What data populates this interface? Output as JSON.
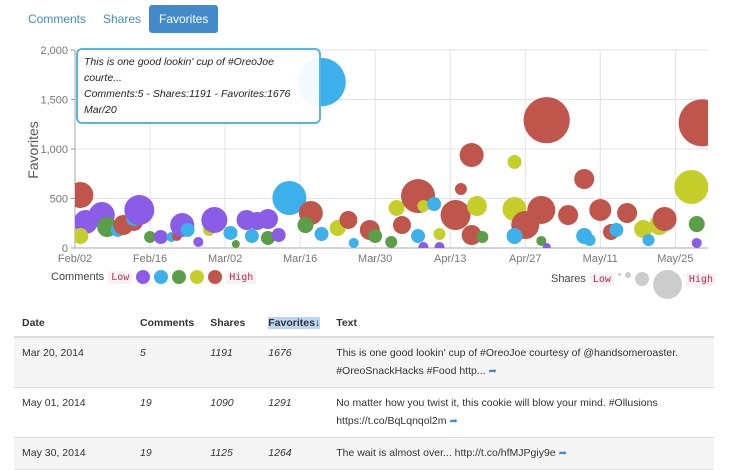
{
  "tabs": [
    {
      "label": "Comments",
      "active": false
    },
    {
      "label": "Shares",
      "active": false
    },
    {
      "label": "Favorites",
      "active": true
    }
  ],
  "tooltip": {
    "line1": "This is one good lookin' cup of #OreoJoe courte...",
    "line2": "Comments:5 - Shares:1191 - Favorites:1676",
    "line3": "Mar/20"
  },
  "chart_data": {
    "type": "scatter",
    "ylabel": "Favorites",
    "ylim": [
      0,
      2000
    ],
    "yticks": [
      "0",
      "500",
      "1,000",
      "1,500",
      "2,000"
    ],
    "xlim": [
      "2014-02-02",
      "2014-06-01"
    ],
    "xticks": [
      "Feb/02",
      "Feb/16",
      "Mar/02",
      "Mar/16",
      "Mar/30",
      "Apr/13",
      "Apr/27",
      "May/11",
      "May/25"
    ],
    "grid": true,
    "color_by": "comments",
    "size_by": "shares",
    "colors": [
      "#8a5ce8",
      "#3cb0ea",
      "#5b9e48",
      "#c6cf2a",
      "#c0554b"
    ],
    "points": [
      [
        "2014-02-03",
        535,
        20,
        345
      ],
      [
        "2014-02-04",
        263,
        2,
        294
      ],
      [
        "2014-02-03",
        121,
        14,
        131
      ],
      [
        "2014-02-07",
        333,
        2,
        345
      ],
      [
        "2014-02-08",
        212,
        9,
        204
      ],
      [
        "2014-02-10",
        182,
        5,
        100
      ],
      [
        "2014-02-11",
        232,
        20,
        204
      ],
      [
        "2014-02-13",
        263,
        20,
        165
      ],
      [
        "2014-02-13",
        303,
        5,
        131
      ],
      [
        "2014-02-14",
        384,
        2,
        459
      ],
      [
        "2014-02-16",
        111,
        9,
        73
      ],
      [
        "2014-02-18",
        111,
        2,
        100
      ],
      [
        "2014-02-20",
        111,
        5,
        51
      ],
      [
        "2014-02-21",
        121,
        20,
        51
      ],
      [
        "2014-02-22",
        232,
        2,
        294
      ],
      [
        "2014-02-23",
        182,
        5,
        100
      ],
      [
        "2014-02-25",
        61,
        2,
        51
      ],
      [
        "2014-02-27",
        182,
        14,
        73
      ],
      [
        "2014-02-28",
        283,
        2,
        345
      ],
      [
        "2014-03-03",
        152,
        5,
        100
      ],
      [
        "2014-03-04",
        40,
        9,
        33
      ],
      [
        "2014-03-06",
        283,
        2,
        204
      ],
      [
        "2014-03-08",
        273,
        2,
        165
      ],
      [
        "2014-03-10",
        293,
        2,
        204
      ],
      [
        "2014-03-07",
        121,
        5,
        100
      ],
      [
        "2014-03-10",
        101,
        9,
        100
      ],
      [
        "2014-03-12",
        131,
        2,
        100
      ],
      [
        "2014-03-14",
        505,
        5,
        590
      ],
      [
        "2014-03-18",
        354,
        20,
        294
      ],
      [
        "2014-03-20",
        141,
        5,
        100
      ],
      [
        "2014-03-17",
        232,
        9,
        131
      ],
      [
        "2014-03-23",
        202,
        14,
        131
      ],
      [
        "2014-03-25",
        283,
        20,
        165
      ],
      [
        "2014-03-26",
        51,
        5,
        51
      ],
      [
        "2014-03-29",
        182,
        20,
        204
      ],
      [
        "2014-03-30",
        121,
        9,
        100
      ],
      [
        "2014-04-03",
        404,
        14,
        131
      ],
      [
        "2014-04-07",
        525,
        20,
        590
      ],
      [
        "2014-04-08",
        424,
        14,
        73
      ],
      [
        "2014-04-10",
        444,
        5,
        100
      ],
      [
        "2014-04-04",
        232,
        20,
        165
      ],
      [
        "2014-04-07",
        121,
        5,
        100
      ],
      [
        "2014-04-02",
        61,
        9,
        73
      ],
      [
        "2014-04-08",
        10,
        2,
        51
      ],
      [
        "2014-04-11",
        10,
        2,
        51
      ],
      [
        "2014-04-15",
        596,
        20,
        73
      ],
      [
        "2014-04-14",
        333,
        20,
        459
      ],
      [
        "2014-04-17",
        131,
        20,
        204
      ],
      [
        "2014-04-18",
        424,
        14,
        204
      ],
      [
        "2014-04-17",
        939,
        20,
        294
      ],
      [
        "2014-04-25",
        394,
        14,
        294
      ],
      [
        "2014-04-25",
        869,
        14,
        100
      ],
      [
        "2014-04-27",
        232,
        20,
        400
      ],
      [
        "2014-04-30",
        384,
        20,
        400
      ],
      [
        "2014-05-05",
        333,
        20,
        204
      ],
      [
        "2014-04-19",
        111,
        9,
        73
      ],
      [
        "2014-04-11",
        141,
        14,
        73
      ],
      [
        "2014-04-25",
        121,
        5,
        131
      ],
      [
        "2014-05-08",
        121,
        5,
        131
      ],
      [
        "2014-05-09",
        81,
        5,
        73
      ],
      [
        "2014-05-08",
        697,
        20,
        204
      ],
      [
        "2014-05-11",
        384,
        20,
        247
      ],
      [
        "2014-05-16",
        354,
        20,
        204
      ],
      [
        "2014-05-13",
        162,
        20,
        131
      ],
      [
        "2014-05-14",
        182,
        5,
        100
      ],
      [
        "2014-05-19",
        192,
        14,
        165
      ],
      [
        "2014-05-20",
        81,
        5,
        73
      ],
      [
        "2014-05-22",
        232,
        14,
        204
      ],
      [
        "2014-05-23",
        293,
        20,
        294
      ],
      [
        "2014-05-28",
        616,
        14,
        590
      ],
      [
        "2014-05-29",
        242,
        9,
        131
      ],
      [
        "2014-05-29",
        51,
        2,
        51
      ],
      [
        "2014-04-30",
        71,
        9,
        51
      ],
      [
        "2014-05-01",
        10,
        2,
        33
      ],
      [
        "2014-05-01",
        1291,
        19,
        1090
      ],
      [
        "2014-05-30",
        1264,
        19,
        1125
      ],
      [
        "2014-03-20",
        1676,
        5,
        1191
      ]
    ]
  },
  "legend": {
    "comments_label": "Comments",
    "shares_label": "Shares",
    "low": "Low",
    "high": "High"
  },
  "table": {
    "headers": [
      "Date",
      "Comments",
      "Shares",
      "Favorites↓",
      "Text"
    ],
    "rows": [
      {
        "date": "Mar 20, 2014",
        "comments": "5",
        "shares": "1191",
        "favorites": "1676",
        "text": "This is one good lookin' cup of #OreoJoe courtesy of @handsomeroaster. #OreoSnackHacks #Food http..."
      },
      {
        "date": "May 01, 2014",
        "comments": "19",
        "shares": "1090",
        "favorites": "1291",
        "text": "No matter how you twist it, this cookie will blow your mind. #Ollusions https://t.co/BqLqnqol2m"
      },
      {
        "date": "May 30, 2014",
        "comments": "19",
        "shares": "1125",
        "favorites": "1264",
        "text": "The wait is almost over... http://t.co/hfMJPgiy9e"
      }
    ]
  }
}
